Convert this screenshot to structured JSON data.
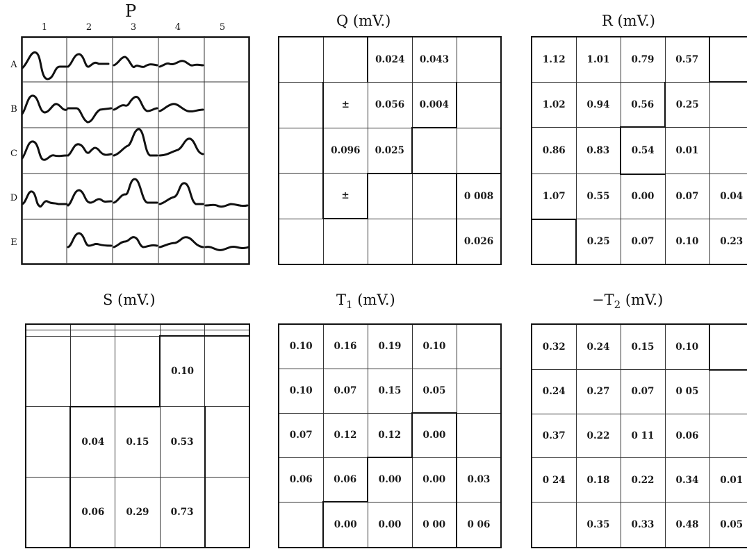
{
  "panels": {
    "p": {
      "title": "P",
      "columns": [
        "1",
        "2",
        "3",
        "4",
        "5"
      ],
      "rows": [
        "A",
        "B",
        "C",
        "D",
        "E"
      ]
    },
    "q": {
      "title": "Q (mV.)",
      "cells": [
        [
          "",
          "",
          "0.024",
          "0.043",
          ""
        ],
        [
          "",
          "±",
          "0.056",
          "0.004",
          ""
        ],
        [
          "",
          "0.096",
          "0.025",
          "",
          ""
        ],
        [
          "",
          "±",
          "",
          "",
          "0 008"
        ],
        [
          "",
          "",
          "",
          "",
          "0.026"
        ]
      ]
    },
    "r": {
      "title": "R (mV.)",
      "cells": [
        [
          "1.12",
          "1.01",
          "0.79",
          "0.57",
          ""
        ],
        [
          "1.02",
          "0.94",
          "0.56",
          "0.25",
          ""
        ],
        [
          "0.86",
          "0.83",
          "0.54",
          "0.01",
          ""
        ],
        [
          "1.07",
          "0.55",
          "0.00",
          "0.07",
          "0.04"
        ],
        [
          "",
          "0.25",
          "0.07",
          "0.10",
          "0.23"
        ]
      ]
    },
    "s": {
      "title": "S (mV.)",
      "cells": [
        [
          "",
          "",
          "",
          "",
          ""
        ],
        [
          "",
          "",
          "",
          "",
          ""
        ],
        [
          "",
          "",
          "",
          "0.10",
          ""
        ],
        [
          "",
          "0.04",
          "0.15",
          "0.53",
          ""
        ],
        [
          "",
          "0.06",
          "0.29",
          "0.73",
          ""
        ]
      ]
    },
    "t1": {
      "title_main": "T",
      "title_sub": "1",
      "title_rest": " (mV.)",
      "cells": [
        [
          "0.10",
          "0.16",
          "0.19",
          "0.10",
          ""
        ],
        [
          "0.10",
          "0.07",
          "0.15",
          "0.05",
          ""
        ],
        [
          "0.07",
          "0.12",
          "0.12",
          "0.00",
          ""
        ],
        [
          "0.06",
          "0.06",
          "0.00",
          "0.00",
          "0.03"
        ],
        [
          "",
          "0.00",
          "0.00",
          "0 00",
          "0 06"
        ]
      ]
    },
    "t2": {
      "title_main": "−T",
      "title_sub": "2",
      "title_rest": " (mV.)",
      "cells": [
        [
          "0.32",
          "0.24",
          "0.15",
          "0.10",
          ""
        ],
        [
          "0.24",
          "0.27",
          "0.07",
          "0 05",
          ""
        ],
        [
          "0.37",
          "0.22",
          "0 11",
          "0.06",
          ""
        ],
        [
          "0 24",
          "0.18",
          "0.22",
          "0.34",
          "0.01"
        ],
        [
          "",
          "0.35",
          "0.33",
          "0.48",
          "0.05"
        ]
      ]
    }
  }
}
